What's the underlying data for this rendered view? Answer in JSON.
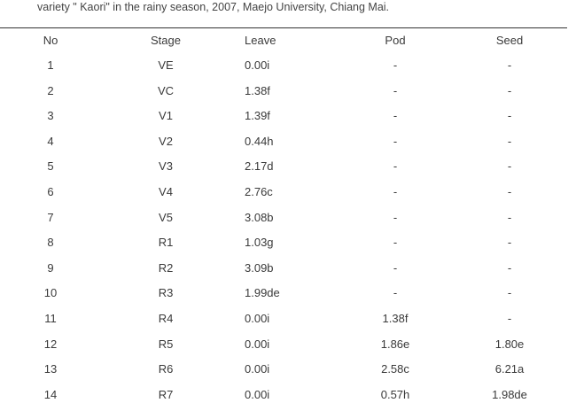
{
  "caption": "variety \" Kaori\" in  the rainy season, 2007, Maejo University, Chiang Mai.",
  "table": {
    "headers": [
      "No",
      "Stage",
      "Leave",
      "Pod",
      "Seed"
    ],
    "rows": [
      [
        "1",
        "VE",
        "0.00i",
        "-",
        "-"
      ],
      [
        "2",
        "VC",
        "1.38f",
        "-",
        "-"
      ],
      [
        "3",
        "V1",
        "1.39f",
        "-",
        "-"
      ],
      [
        "4",
        "V2",
        "0.44h",
        "-",
        "-"
      ],
      [
        "5",
        "V3",
        "2.17d",
        "-",
        "-"
      ],
      [
        "6",
        "V4",
        "2.76c",
        "-",
        "-"
      ],
      [
        "7",
        "V5",
        "3.08b",
        "-",
        "-"
      ],
      [
        "8",
        "R1",
        "1.03g",
        "-",
        "-"
      ],
      [
        "9",
        "R2",
        "3.09b",
        "-",
        "-"
      ],
      [
        "10",
        "R3",
        "1.99de",
        "-",
        "-"
      ],
      [
        "11",
        "R4",
        "0.00i",
        "1.38f",
        "-"
      ],
      [
        "12",
        "R5",
        "0.00i",
        "1.86e",
        "1.80e"
      ],
      [
        "13",
        "R6",
        "0.00i",
        "2.58c",
        "6.21a"
      ],
      [
        "14",
        "R7",
        "0.00i",
        "0.57h",
        "1.98de"
      ]
    ]
  }
}
